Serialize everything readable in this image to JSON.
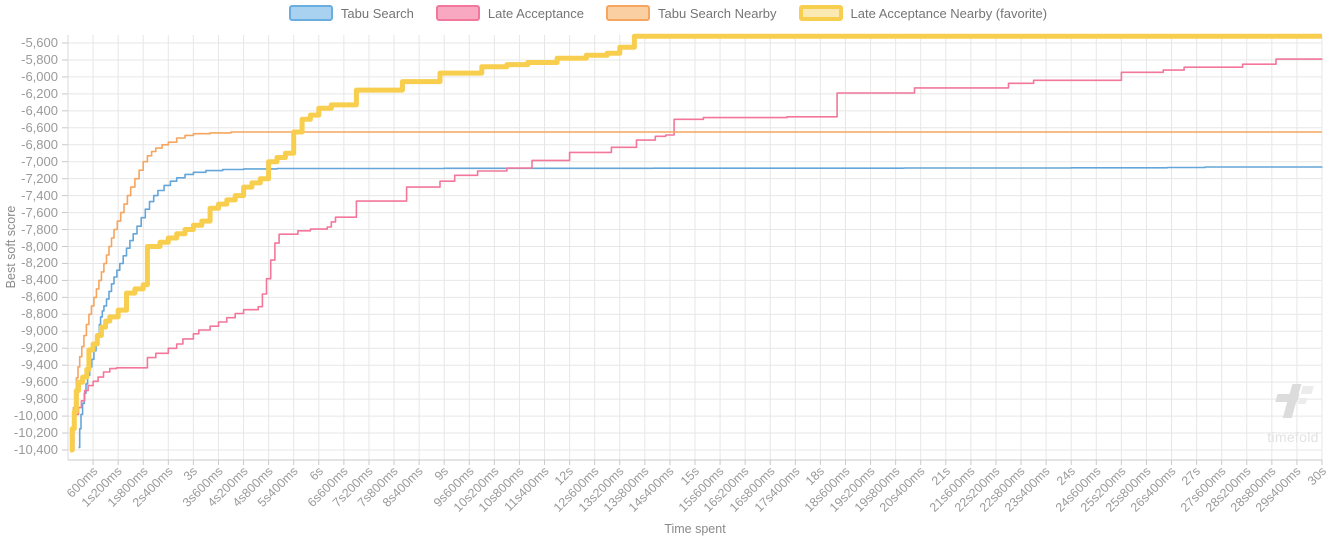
{
  "legend": {
    "items": [
      {
        "label": "Tabu Search",
        "fill": "#A8D2F0",
        "border": "#6AAEDF",
        "border_width": 2
      },
      {
        "label": "Late Acceptance",
        "fill": "#F8A8C0",
        "border": "#F2779B",
        "border_width": 2
      },
      {
        "label": "Tabu Search Nearby",
        "fill": "#FAD0A2",
        "border": "#F5A55F",
        "border_width": 2
      },
      {
        "label": "Late Acceptance Nearby (favorite)",
        "fill": "#FBE9B4",
        "border": "#F8CE4F",
        "border_width": 4
      }
    ]
  },
  "axes": {
    "x_title": "Time spent",
    "y_title": "Best soft score"
  },
  "watermark": {
    "text": "timefold"
  },
  "chart_data": {
    "type": "line",
    "step": true,
    "title": "",
    "xlabel": "Time spent",
    "ylabel": "Best soft score",
    "grid": true,
    "legend_position": "top",
    "x_range_ms": [
      0,
      30000
    ],
    "x_tick_interval_ms": 600,
    "ylim": [
      -10400,
      -5600
    ],
    "y_tick_interval": 200,
    "x_tick_labels": [
      "600ms",
      "1s200ms",
      "1s800ms",
      "2s400ms",
      "3s",
      "3s600ms",
      "4s200ms",
      "4s800ms",
      "5s400ms",
      "6s",
      "6s600ms",
      "7s200ms",
      "7s800ms",
      "8s400ms",
      "9s",
      "9s600ms",
      "10s200ms",
      "10s800ms",
      "11s400ms",
      "12s",
      "12s600ms",
      "13s200ms",
      "13s800ms",
      "14s400ms",
      "15s",
      "15s600ms",
      "16s200ms",
      "16s800ms",
      "17s400ms",
      "18s",
      "18s600ms",
      "19s200ms",
      "19s800ms",
      "20s400ms",
      "21s",
      "21s600ms",
      "22s200ms",
      "22s800ms",
      "23s400ms",
      "24s",
      "24s600ms",
      "25s200ms",
      "25s800ms",
      "26s400ms",
      "27s",
      "27s600ms",
      "28s200ms",
      "28s800ms",
      "29s400ms",
      "30s"
    ],
    "y_tick_labels": [
      "-5,600",
      "-5,800",
      "-6,000",
      "-6,200",
      "-6,400",
      "-6,600",
      "-6,800",
      "-7,000",
      "-7,200",
      "-7,400",
      "-7,600",
      "-7,800",
      "-8,000",
      "-8,200",
      "-8,400",
      "-8,600",
      "-8,800",
      "-9,000",
      "-9,200",
      "-9,400",
      "-9,600",
      "-9,800",
      "-10,000",
      "-10,200",
      "-10,400"
    ],
    "series": [
      {
        "name": "Tabu Search",
        "color": "#64A6D9",
        "line_width": 1.6,
        "points_ms_score": [
          [
            250,
            -10370
          ],
          [
            280,
            -10150
          ],
          [
            310,
            -9980
          ],
          [
            350,
            -9850
          ],
          [
            390,
            -9730
          ],
          [
            430,
            -9620
          ],
          [
            470,
            -9520
          ],
          [
            520,
            -9420
          ],
          [
            570,
            -9330
          ],
          [
            620,
            -9230
          ],
          [
            670,
            -9130
          ],
          [
            710,
            -9030
          ],
          [
            750,
            -8920
          ],
          [
            780,
            -8830
          ],
          [
            820,
            -8760
          ],
          [
            860,
            -8700
          ],
          [
            920,
            -8620
          ],
          [
            980,
            -8530
          ],
          [
            1040,
            -8440
          ],
          [
            1100,
            -8360
          ],
          [
            1170,
            -8280
          ],
          [
            1240,
            -8200
          ],
          [
            1320,
            -8110
          ],
          [
            1400,
            -8020
          ],
          [
            1480,
            -7930
          ],
          [
            1560,
            -7850
          ],
          [
            1650,
            -7760
          ],
          [
            1750,
            -7660
          ],
          [
            1850,
            -7560
          ],
          [
            1950,
            -7470
          ],
          [
            2050,
            -7400
          ],
          [
            2150,
            -7340
          ],
          [
            2300,
            -7280
          ],
          [
            2450,
            -7230
          ],
          [
            2600,
            -7190
          ],
          [
            2800,
            -7150
          ],
          [
            3000,
            -7125
          ],
          [
            3300,
            -7105
          ],
          [
            3700,
            -7092
          ],
          [
            4200,
            -7085
          ],
          [
            5000,
            -7080
          ],
          [
            9000,
            -7078
          ],
          [
            14000,
            -7076
          ],
          [
            20000,
            -7074
          ],
          [
            24000,
            -7072
          ],
          [
            26300,
            -7068
          ],
          [
            27200,
            -7062
          ],
          [
            30000,
            -7060
          ]
        ]
      },
      {
        "name": "Late Acceptance",
        "color": "#F2779B",
        "line_width": 1.6,
        "points_ms_score": [
          [
            100,
            -10400
          ],
          [
            140,
            -10100
          ],
          [
            180,
            -9980
          ],
          [
            250,
            -9900
          ],
          [
            320,
            -9820
          ],
          [
            400,
            -9700
          ],
          [
            480,
            -9640
          ],
          [
            600,
            -9590
          ],
          [
            720,
            -9540
          ],
          [
            850,
            -9480
          ],
          [
            1000,
            -9440
          ],
          [
            1160,
            -9430
          ],
          [
            1900,
            -9310
          ],
          [
            2100,
            -9260
          ],
          [
            2400,
            -9200
          ],
          [
            2600,
            -9150
          ],
          [
            2750,
            -9090
          ],
          [
            3000,
            -9030
          ],
          [
            3130,
            -8985
          ],
          [
            3400,
            -8940
          ],
          [
            3600,
            -8890
          ],
          [
            3800,
            -8840
          ],
          [
            4000,
            -8790
          ],
          [
            4200,
            -8745
          ],
          [
            4550,
            -8710
          ],
          [
            4650,
            -8560
          ],
          [
            4750,
            -8380
          ],
          [
            4850,
            -8160
          ],
          [
            4950,
            -7960
          ],
          [
            5050,
            -7855
          ],
          [
            5500,
            -7815
          ],
          [
            5800,
            -7795
          ],
          [
            6200,
            -7770
          ],
          [
            6300,
            -7710
          ],
          [
            6400,
            -7655
          ],
          [
            6900,
            -7465
          ],
          [
            8100,
            -7300
          ],
          [
            8900,
            -7230
          ],
          [
            9250,
            -7160
          ],
          [
            9800,
            -7110
          ],
          [
            10500,
            -7075
          ],
          [
            11100,
            -6985
          ],
          [
            12000,
            -6890
          ],
          [
            13000,
            -6830
          ],
          [
            13600,
            -6745
          ],
          [
            14050,
            -6700
          ],
          [
            14300,
            -6685
          ],
          [
            14500,
            -6500
          ],
          [
            15200,
            -6480
          ],
          [
            17200,
            -6470
          ],
          [
            18400,
            -6190
          ],
          [
            20250,
            -6130
          ],
          [
            22500,
            -6075
          ],
          [
            23100,
            -6040
          ],
          [
            25200,
            -5945
          ],
          [
            26200,
            -5920
          ],
          [
            26700,
            -5885
          ],
          [
            28100,
            -5850
          ],
          [
            28900,
            -5790
          ],
          [
            30000,
            -5785
          ]
        ]
      },
      {
        "name": "Tabu Search Nearby",
        "color": "#F5A55F",
        "line_width": 1.6,
        "points_ms_score": [
          [
            80,
            -10350
          ],
          [
            100,
            -10150
          ],
          [
            130,
            -9900
          ],
          [
            160,
            -9700
          ],
          [
            200,
            -9550
          ],
          [
            240,
            -9420
          ],
          [
            280,
            -9300
          ],
          [
            330,
            -9180
          ],
          [
            380,
            -9050
          ],
          [
            440,
            -8920
          ],
          [
            500,
            -8800
          ],
          [
            560,
            -8700
          ],
          [
            620,
            -8600
          ],
          [
            680,
            -8500
          ],
          [
            740,
            -8400
          ],
          [
            800,
            -8300
          ],
          [
            860,
            -8200
          ],
          [
            920,
            -8100
          ],
          [
            980,
            -8000
          ],
          [
            1040,
            -7900
          ],
          [
            1100,
            -7800
          ],
          [
            1180,
            -7700
          ],
          [
            1260,
            -7600
          ],
          [
            1340,
            -7500
          ],
          [
            1420,
            -7400
          ],
          [
            1500,
            -7300
          ],
          [
            1600,
            -7200
          ],
          [
            1700,
            -7100
          ],
          [
            1800,
            -7000
          ],
          [
            1900,
            -6930
          ],
          [
            2000,
            -6880
          ],
          [
            2100,
            -6840
          ],
          [
            2250,
            -6800
          ],
          [
            2400,
            -6770
          ],
          [
            2600,
            -6720
          ],
          [
            2800,
            -6690
          ],
          [
            3000,
            -6670
          ],
          [
            3400,
            -6660
          ],
          [
            3900,
            -6650
          ],
          [
            30000,
            -6650
          ]
        ]
      },
      {
        "name": "Late Acceptance Nearby (favorite)",
        "color": "#F8CE4F",
        "line_width": 5,
        "points_ms_score": [
          [
            50,
            -10400
          ],
          [
            100,
            -10150
          ],
          [
            150,
            -9950
          ],
          [
            200,
            -9700
          ],
          [
            250,
            -9600
          ],
          [
            350,
            -9540
          ],
          [
            450,
            -9450
          ],
          [
            500,
            -9220
          ],
          [
            600,
            -9150
          ],
          [
            700,
            -9050
          ],
          [
            800,
            -8950
          ],
          [
            900,
            -8880
          ],
          [
            1000,
            -8830
          ],
          [
            1200,
            -8750
          ],
          [
            1400,
            -8550
          ],
          [
            1600,
            -8500
          ],
          [
            1800,
            -8450
          ],
          [
            1900,
            -8000
          ],
          [
            2200,
            -7950
          ],
          [
            2400,
            -7900
          ],
          [
            2600,
            -7850
          ],
          [
            2800,
            -7800
          ],
          [
            3000,
            -7750
          ],
          [
            3200,
            -7700
          ],
          [
            3400,
            -7550
          ],
          [
            3600,
            -7500
          ],
          [
            3800,
            -7450
          ],
          [
            4000,
            -7400
          ],
          [
            4200,
            -7300
          ],
          [
            4400,
            -7250
          ],
          [
            4600,
            -7200
          ],
          [
            4800,
            -7000
          ],
          [
            5000,
            -6950
          ],
          [
            5200,
            -6900
          ],
          [
            5400,
            -6650
          ],
          [
            5600,
            -6500
          ],
          [
            5800,
            -6450
          ],
          [
            6000,
            -6370
          ],
          [
            6300,
            -6330
          ],
          [
            6900,
            -6155
          ],
          [
            8000,
            -6055
          ],
          [
            8900,
            -5955
          ],
          [
            9900,
            -5880
          ],
          [
            10500,
            -5855
          ],
          [
            11000,
            -5830
          ],
          [
            11700,
            -5780
          ],
          [
            12400,
            -5745
          ],
          [
            12900,
            -5720
          ],
          [
            13200,
            -5650
          ],
          [
            13550,
            -5520
          ],
          [
            30000,
            -5520
          ]
        ]
      }
    ]
  }
}
